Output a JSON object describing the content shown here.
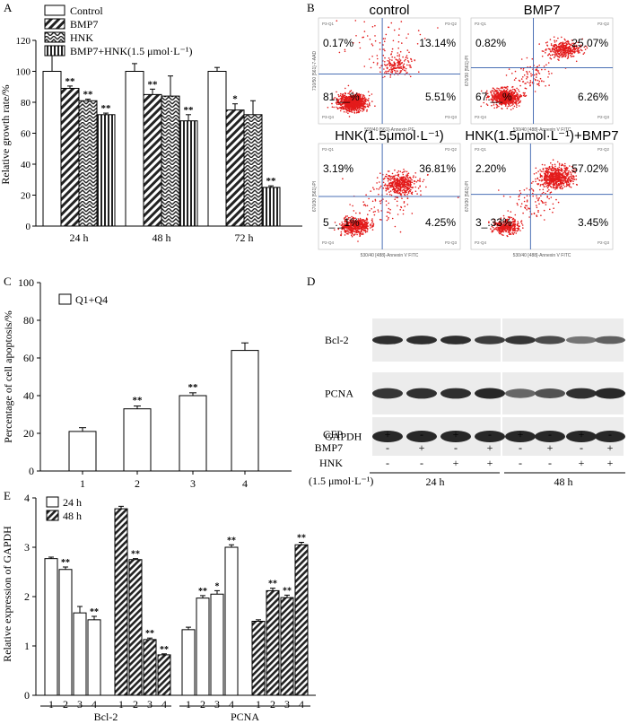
{
  "chart_data": [
    {
      "panel": "A",
      "type": "bar",
      "ylabel": "Relative growth rate/%",
      "ylim": [
        0,
        120
      ],
      "yticks": [
        "0",
        "20",
        "40",
        "60",
        "80",
        "100",
        "120"
      ],
      "categories": [
        "24 h",
        "48 h",
        "72 h"
      ],
      "legend": [
        "Control",
        "BMP7",
        "HNK",
        "BMP7+HNK(1.5 μmol·L⁻¹)"
      ],
      "series": [
        {
          "name": "Control",
          "values": [
            100,
            100,
            100
          ],
          "errors": [
            11,
            5,
            2.5
          ],
          "sig": [
            "",
            "",
            ""
          ]
        },
        {
          "name": "BMP7",
          "values": [
            89,
            85,
            75
          ],
          "errors": [
            1.5,
            3.5,
            4
          ],
          "sig": [
            "**",
            "**",
            "*"
          ]
        },
        {
          "name": "HNK",
          "values": [
            81,
            84,
            72
          ],
          "errors": [
            1,
            13,
            9
          ],
          "sig": [
            "**",
            "",
            ""
          ]
        },
        {
          "name": "BMP7+HNK(1.5 μmol·L⁻¹)",
          "values": [
            72,
            68,
            25
          ],
          "errors": [
            1,
            4,
            1
          ],
          "sig": [
            "**",
            "**",
            "**"
          ]
        }
      ]
    },
    {
      "panel": "C",
      "type": "bar",
      "ylabel": "Percentage of cell apoptosis/%",
      "ylim": [
        0,
        100
      ],
      "yticks": [
        "0",
        "20",
        "40",
        "60",
        "80",
        "100"
      ],
      "categories": [
        "1",
        "2",
        "3",
        "4"
      ],
      "legend": [
        "Q1+Q4"
      ],
      "series": [
        {
          "name": "Q1+Q4",
          "values": [
            21,
            33,
            40,
            64
          ],
          "errors": [
            2,
            1.5,
            1.5,
            4
          ],
          "sig": [
            "",
            "**",
            "**",
            ""
          ]
        }
      ]
    },
    {
      "panel": "E",
      "type": "bar",
      "ylabel": "Relative expression of GAPDH",
      "ylim": [
        0,
        4
      ],
      "yticks": [
        "0",
        "1",
        "2",
        "3",
        "4"
      ],
      "legend": [
        "24 h",
        "48 h"
      ],
      "group_labels": [
        "Bcl-2",
        "PCNA"
      ],
      "lane_labels": [
        "1",
        "2",
        "3",
        "4"
      ],
      "series": [
        {
          "name": "24 h",
          "values": [
            2.77,
            2.55,
            1.67,
            1.53
          ],
          "errors": [
            0.03,
            0.05,
            0.13,
            0.07
          ],
          "sig": [
            "",
            "**",
            "",
            "**"
          ]
        },
        {
          "name": "48 h",
          "values": [
            3.78,
            2.75,
            1.13,
            0.82
          ],
          "errors": [
            0.05,
            0.02,
            0.03,
            0.02
          ],
          "sig": [
            "",
            "**",
            "**",
            "**"
          ]
        },
        {
          "name": "24 h",
          "values": [
            1.33,
            1.97,
            2.05,
            3.0
          ],
          "errors": [
            0.05,
            0.05,
            0.07,
            0.05
          ],
          "sig": [
            "",
            "**",
            "*",
            "**"
          ]
        },
        {
          "name": "48 h",
          "values": [
            1.5,
            2.12,
            1.98,
            3.05
          ],
          "errors": [
            0.03,
            0.05,
            0.05,
            0.05
          ],
          "sig": [
            "",
            "**",
            "**",
            "**"
          ]
        }
      ]
    }
  ],
  "panels": {
    "A": "A",
    "B": "B",
    "C": "C",
    "D": "D",
    "E": "E"
  },
  "flow": {
    "plots": [
      {
        "title": "control",
        "q1": "0.17%",
        "q2": "13.14%",
        "q3": "5.51%",
        "q4": "81.__%",
        "lab_q1": "P3-Q1",
        "lab_q2": "P3-Q2",
        "lab_q3": "P3-Q3",
        "lab_q4": "P3-Q4",
        "xaxis": "593/40 [561]-Annexin PE",
        "yaxis": "710/50 [561]-7-AAD"
      },
      {
        "title": "BMP7",
        "q1": "0.82%",
        "q2": "25.07%",
        "q3": "6.26%",
        "q4": "67.__%",
        "lab_q1": "P2-Q1",
        "lab_q2": "P2-Q2",
        "lab_q3": "P2-Q3",
        "lab_q4": "P2-Q4",
        "xaxis": "530/40 [488]-Annexin V FITC",
        "yaxis": "670/30 [561]-PI"
      },
      {
        "title": "HNK(1.5μmol·L⁻¹)",
        "q1": "3.19%",
        "q2": "36.81%",
        "q3": "4.25%",
        "q4": "5_._1%",
        "lab_q1": "P2-Q1",
        "lab_q2": "P2-Q2",
        "lab_q3": "P2-Q3",
        "lab_q4": "P2-Q4",
        "xaxis": "530/40 [488]-Annexin V FITC",
        "yaxis": "670/30 [561]-PI"
      },
      {
        "title": "HNK(1.5μmol·L⁻¹)+BMP7",
        "q1": "2.20%",
        "q2": "57.02%",
        "q3": "3.45%",
        "q4": "3_.33%",
        "lab_q1": "P2-Q1",
        "lab_q2": "P2-Q2",
        "lab_q3": "P2-Q3",
        "lab_q4": "P2-Q4",
        "xaxis": "530/40 [488]-Annexin V FITC",
        "yaxis": "670/30 [561]-PI"
      }
    ]
  },
  "western": {
    "rows": [
      "Bcl-2",
      "PCNA",
      "GAPDH"
    ],
    "treatments": [
      {
        "label": "GFP",
        "signs": [
          "+",
          "-",
          "+",
          "-",
          "+",
          "-",
          "+",
          "-"
        ]
      },
      {
        "label": "BMP7",
        "signs": [
          "-",
          "+",
          "-",
          "+",
          "-",
          "+",
          "-",
          "+"
        ]
      },
      {
        "label": "HNK",
        "signs": [
          "-",
          "-",
          "+",
          "+",
          "-",
          "-",
          "+",
          "+"
        ]
      }
    ],
    "conc": "(1.5 μmol·L⁻¹)",
    "times": [
      "24 h",
      "48 h"
    ]
  }
}
